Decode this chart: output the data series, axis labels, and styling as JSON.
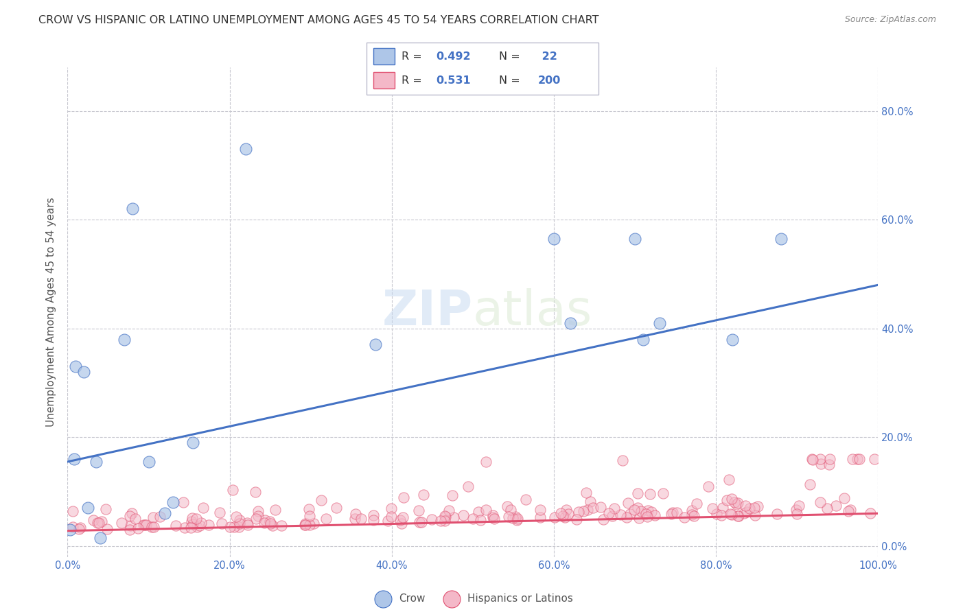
{
  "title": "CROW VS HISPANIC OR LATINO UNEMPLOYMENT AMONG AGES 45 TO 54 YEARS CORRELATION CHART",
  "source": "Source: ZipAtlas.com",
  "ylabel": "Unemployment Among Ages 45 to 54 years",
  "xlim": [
    0.0,
    1.0
  ],
  "ylim": [
    -0.02,
    0.88
  ],
  "xticks": [
    0.0,
    0.2,
    0.4,
    0.6,
    0.8,
    1.0
  ],
  "xticklabels": [
    "0.0%",
    "20.0%",
    "40.0%",
    "60.0%",
    "80.0%",
    "100.0%"
  ],
  "yticks": [
    0.0,
    0.2,
    0.4,
    0.6,
    0.8
  ],
  "yticklabels": [
    "0.0%",
    "20.0%",
    "40.0%",
    "60.0%",
    "80.0%"
  ],
  "legend_labels": [
    "Crow",
    "Hispanics or Latinos"
  ],
  "crow_R": 0.492,
  "crow_N": 22,
  "hispanic_R": 0.531,
  "hispanic_N": 200,
  "crow_color": "#aec6e8",
  "hispanic_color": "#f4b8c8",
  "crow_line_color": "#4472c4",
  "hispanic_line_color": "#e05070",
  "crow_scatter_x": [
    0.003,
    0.008,
    0.01,
    0.02,
    0.025,
    0.035,
    0.04,
    0.07,
    0.08,
    0.1,
    0.12,
    0.13,
    0.155,
    0.22,
    0.38,
    0.6,
    0.62,
    0.7,
    0.71,
    0.73,
    0.82,
    0.88
  ],
  "crow_scatter_y": [
    0.03,
    0.16,
    0.33,
    0.32,
    0.07,
    0.155,
    0.015,
    0.38,
    0.62,
    0.155,
    0.06,
    0.08,
    0.19,
    0.73,
    0.37,
    0.565,
    0.41,
    0.565,
    0.38,
    0.41,
    0.38,
    0.565
  ],
  "crow_trendline_x": [
    0.0,
    1.0
  ],
  "crow_trendline_y": [
    0.155,
    0.48
  ],
  "hispanic_trendline_x": [
    0.0,
    1.0
  ],
  "hispanic_trendline_y": [
    0.028,
    0.06
  ]
}
